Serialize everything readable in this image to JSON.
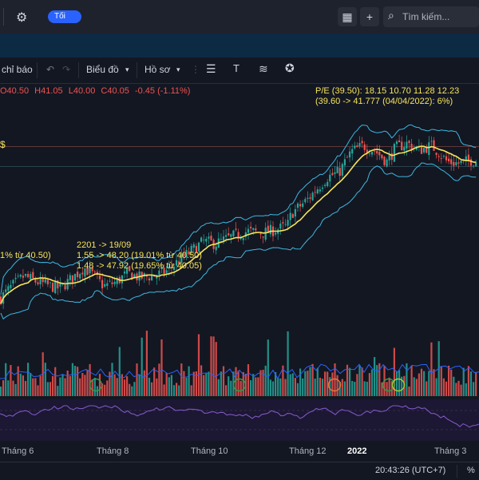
{
  "header": {
    "toggle_label": "Tối",
    "search_placeholder": "Tìm kiếm...",
    "settings_icon": "gear-icon",
    "grid_icon": "grid-icon",
    "add_icon": "plus-icon"
  },
  "toolbar": {
    "indicators_label": "chỉ báo",
    "chart_label": "Biểu đồ",
    "profile_label": "Hồ sơ"
  },
  "ohlc": {
    "open": "O40.50",
    "high": "H41.05",
    "low": "L40.00",
    "close": "C40.05",
    "change": "-0.45 (-1.11%)"
  },
  "pe_text": {
    "line1": "P/E (39.50): 18.15 10.70 11.28 12.23",
    "line2": "(39.60 -> 41.777 (04/04/2022): 6%)"
  },
  "annotations": {
    "a1": "2201 -> 19/09",
    "a2": "1.55 -> 48.20 (19.01% từ 40.50)",
    "a3": "1.48 -> 47.92 (19.65% từ 40.05)",
    "a0": "1% từ 40.50)",
    "dollar": "$"
  },
  "x_axis_labels": [
    "Tháng 6",
    "Tháng 8",
    "Tháng 10",
    "Tháng 12",
    "2022",
    "Tháng 3"
  ],
  "footer": {
    "time": "20:43:26 (UTC+7)",
    "percent": "%"
  },
  "colors": {
    "up": "#26a69a",
    "down": "#ef5350",
    "ma": "#f7e45a",
    "band": "#3db8e0",
    "rsi": "#7e57c2"
  },
  "chart_data": {
    "type": "candlestick",
    "price_anchors": [
      [
        0,
        35.2
      ],
      [
        15,
        36.8
      ],
      [
        30,
        38.1
      ],
      [
        45,
        37.4
      ],
      [
        60,
        36.9
      ],
      [
        75,
        36.5
      ],
      [
        90,
        37.8
      ],
      [
        105,
        39.2
      ],
      [
        115,
        38.4
      ],
      [
        130,
        36.8
      ],
      [
        145,
        37.3
      ],
      [
        160,
        38.5
      ],
      [
        175,
        37.9
      ],
      [
        195,
        38.2
      ],
      [
        210,
        38.8
      ],
      [
        225,
        40.2
      ],
      [
        240,
        41.4
      ],
      [
        255,
        42.6
      ],
      [
        270,
        42.3
      ],
      [
        290,
        43.2
      ],
      [
        310,
        43.9
      ],
      [
        330,
        43.7
      ],
      [
        345,
        44.1
      ],
      [
        360,
        44.6
      ],
      [
        365,
        46.2
      ],
      [
        375,
        47.1
      ],
      [
        385,
        48.0
      ],
      [
        395,
        49.2
      ],
      [
        410,
        50.9
      ],
      [
        425,
        51.6
      ],
      [
        440,
        54.2
      ],
      [
        455,
        55.0
      ],
      [
        470,
        54.3
      ],
      [
        485,
        52.9
      ],
      [
        495,
        54.7
      ],
      [
        510,
        55.3
      ],
      [
        525,
        54.4
      ],
      [
        540,
        55.0
      ],
      [
        550,
        54.1
      ],
      [
        560,
        52.9
      ],
      [
        575,
        52.7
      ],
      [
        590,
        53.1
      ],
      [
        600,
        53.0
      ]
    ],
    "y_range": [
      30,
      60
    ],
    "volume_range": [
      0,
      100
    ],
    "rsi_range": [
      0,
      100
    ]
  }
}
